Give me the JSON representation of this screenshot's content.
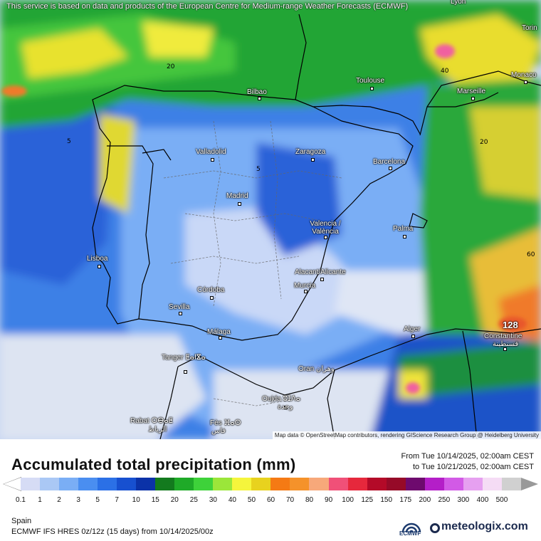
{
  "map": {
    "disclaimer": "This service is based on data and products of the European Centre for Medium-range Weather Forecasts (ECMWF)",
    "credit": "Map data © OpenStreetMap contributors, rendering GIScience Research Group @ Heidelberg University",
    "cities": [
      {
        "name": "Bilbao"
      },
      {
        "name": "Toulouse"
      },
      {
        "name": "Marseille"
      },
      {
        "name": "Monaco"
      },
      {
        "name": "Torin"
      },
      {
        "name": "Lyon"
      },
      {
        "name": "Valladolid"
      },
      {
        "name": "Zaragoza"
      },
      {
        "name": "Barcelona"
      },
      {
        "name": "Madrid"
      },
      {
        "name": "Valencia / València"
      },
      {
        "name": "Palma"
      },
      {
        "name": "Lisboa"
      },
      {
        "name": "Alacant/Alicante"
      },
      {
        "name": "Murcia"
      },
      {
        "name": "Córdoba"
      },
      {
        "name": "Sevilla"
      },
      {
        "name": "Málaga"
      },
      {
        "name": "Alger"
      },
      {
        "name": "Constantine"
      },
      {
        "name": "قسنطينة"
      },
      {
        "name": "Tanger ⵟⴰⵏⴵⴰ"
      },
      {
        "name": "Oran وهران"
      },
      {
        "name": "Oujda ⵓⵊⴷⴰ"
      },
      {
        "name": "Rabat ⵔⴱⴰⵟ"
      },
      {
        "name": "الرباط"
      },
      {
        "name": "Fès ⴼⴰⵙ"
      },
      {
        "name": "فاس"
      },
      {
        "name": "وجدة"
      }
    ],
    "contour_labels": [
      "5",
      "20",
      "40",
      "60",
      "20",
      "5"
    ],
    "max_value": "128"
  },
  "legend": {
    "title": "Accumulated total precipitation (mm)",
    "range_from": "From Tue 10/14/2025, 02:00am CEST",
    "range_to": "to Tue 10/21/2025, 02:00am CEST",
    "ticks": [
      "0.1",
      "1",
      "2",
      "3",
      "5",
      "7",
      "10",
      "15",
      "20",
      "25",
      "30",
      "40",
      "50",
      "60",
      "70",
      "80",
      "90",
      "100",
      "125",
      "150",
      "175",
      "200",
      "250",
      "300",
      "400",
      "500"
    ],
    "colors": [
      "#d6dcf5",
      "#aac8f5",
      "#7aaef5",
      "#4a8ef0",
      "#2b70e6",
      "#1750d0",
      "#0b32a8",
      "#137a1e",
      "#1faa28",
      "#3ed23a",
      "#9be63a",
      "#f5f53c",
      "#e8d21e",
      "#f57a14",
      "#f5922a",
      "#f7a87a",
      "#f05078",
      "#e6283c",
      "#b40a28",
      "#960a28",
      "#6e0a6e",
      "#b41ec8",
      "#d25ae6",
      "#e6a0f0",
      "#f5dcf5",
      "#d0d0d0"
    ],
    "region": "Spain",
    "model": "ECMWF IFS HRES 0z/12z (15 days) from  10/14/2025/00z",
    "ecmwf_label": "ECMWF",
    "brand": "meteologix.com"
  }
}
